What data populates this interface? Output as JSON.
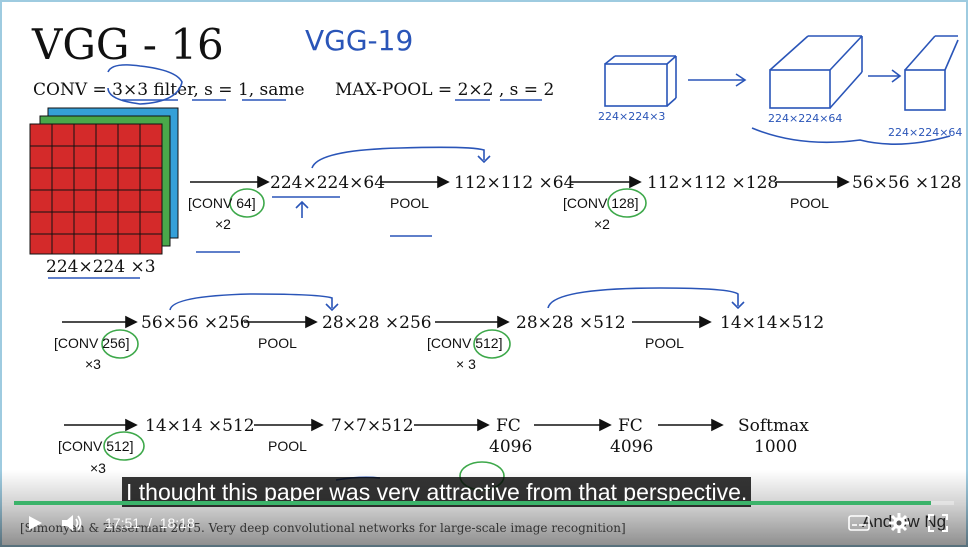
{
  "slide": {
    "title": "VGG - 16",
    "handwritten_title": "VGG-19",
    "conv_rule": "CONV = 3×3 filter, s = 1, same",
    "pool_rule": "MAX-POOL = 2×2 , s = 2",
    "input_label": "224×224 ×3",
    "sketch_labels": [
      "224×224×3",
      "224×224×64",
      "224×224×64"
    ],
    "row1": {
      "conv_a": "[CONV 64]",
      "rep_a": "×2",
      "v1": "224×224×64",
      "pool_a": "POOL",
      "v2": "112×112 ×64",
      "conv_b": "[CONV 128]",
      "rep_b": "×2",
      "v3": "112×112 ×128",
      "pool_b": "POOL",
      "v4": "56×56 ×128"
    },
    "row2": {
      "conv_a": "[CONV 256]",
      "rep_a": "×3",
      "v1": "56×56 ×256",
      "pool_a": "POOL",
      "v2": "28×28 ×256",
      "conv_b": "[CONV 512]",
      "rep_b": "× 3",
      "v3": "28×28 ×512",
      "pool_b": "POOL",
      "v4": "14×14×512"
    },
    "row3": {
      "conv_a": "[CONV 512]",
      "rep_a": "×3",
      "v1": "14×14 ×512",
      "pool_a": "POOL",
      "v2": "7×7×512",
      "fc1": "FC",
      "fc1_units": "4096",
      "fc2": "FC",
      "fc2_units": "4096",
      "softmax": "Softmax",
      "softmax_units": "1000"
    },
    "citation": "[Simonyan & Zisserman 2015. Very deep convolutional networks for large-scale image recognition]",
    "author": "Andrew Ng"
  },
  "player": {
    "caption": "I thought this paper was very attractive from that perspective.",
    "current_time": "17:51",
    "separator": "/",
    "duration": "18:18",
    "progress": 0.975,
    "accent_color": "#3bb36a",
    "icons": [
      "play-icon",
      "volume-icon",
      "subtitles-icon",
      "settings-icon",
      "fullscreen-icon"
    ]
  }
}
